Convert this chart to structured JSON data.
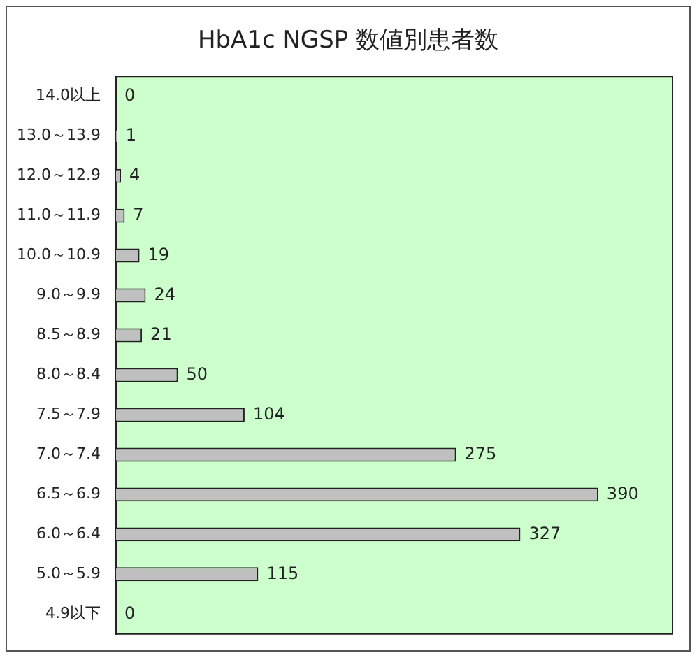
{
  "chart_data": {
    "type": "bar",
    "orientation": "horizontal",
    "title": "HbA1c NGSP 数値別患者数",
    "categories": [
      "14.0以上",
      "13.0～13.9",
      "12.0～12.9",
      "11.0～11.9",
      "10.0～10.9",
      "9.0～9.9",
      "8.5～8.9",
      "8.0～8.4",
      "7.5～7.9",
      "7.0～7.4",
      "6.5～6.9",
      "6.0～6.4",
      "5.0～5.9",
      "4.9以下"
    ],
    "values": [
      0,
      1,
      4,
      7,
      19,
      24,
      21,
      50,
      104,
      275,
      390,
      327,
      115,
      0
    ],
    "color": "#c0c0c0",
    "data_labels": true,
    "grid": false,
    "legend": false
  }
}
